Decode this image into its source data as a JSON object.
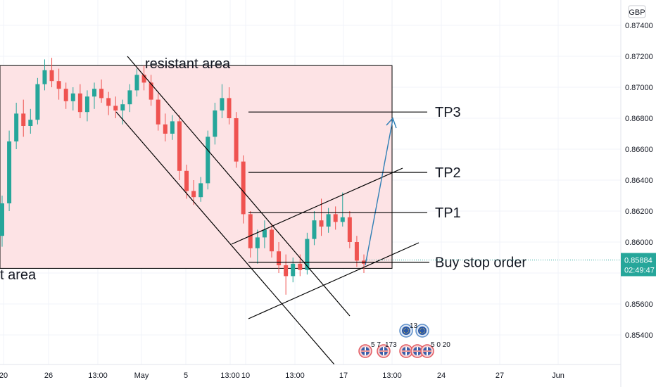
{
  "colors": {
    "up": "#26a69a",
    "down": "#ef5350",
    "zone_fill": "#fde3e5",
    "line": "#000000",
    "arrow": "#2f7fb5",
    "price_badge": "#26a69a",
    "grid": "#f0f3fa",
    "axis_text": "#131722"
  },
  "chart_data": {
    "type": "candlestick",
    "currency": "GBP",
    "ylim": [
      0.8518,
      0.8752
    ],
    "y_ticks": [
      "0.87400",
      "0.87200",
      "0.87000",
      "0.86800",
      "0.86600",
      "0.86400",
      "0.86200",
      "0.86000",
      "0.85800",
      "0.85600",
      "0.85400"
    ],
    "x_ticks": [
      "20",
      "26",
      "13:00",
      "May",
      "5",
      "13:00",
      "10",
      "13:00",
      "17",
      "13:00",
      "24",
      "27",
      "Jun"
    ],
    "current_price": "0.85884",
    "countdown": "02:49:47",
    "zones": [
      {
        "label": "resistant area",
        "top": 0.8714,
        "bottom": 0.8583
      }
    ],
    "support_label": "t area",
    "levels": [
      {
        "label": "TP3",
        "price": 0.8684
      },
      {
        "label": "TP2",
        "price": 0.8645
      },
      {
        "label": "TP1",
        "price": 0.8619
      },
      {
        "label": "Buy stop order",
        "price": 0.8587
      }
    ],
    "candles": [
      [
        0.8604,
        0.863,
        0.8597,
        0.8625
      ],
      [
        0.8625,
        0.8672,
        0.862,
        0.8665
      ],
      [
        0.8665,
        0.869,
        0.866,
        0.8683
      ],
      [
        0.8683,
        0.8692,
        0.8668,
        0.8675
      ],
      [
        0.8675,
        0.8686,
        0.867,
        0.8679
      ],
      [
        0.8679,
        0.8706,
        0.8676,
        0.8702
      ],
      [
        0.8702,
        0.8718,
        0.8698,
        0.8711
      ],
      [
        0.8711,
        0.8719,
        0.87,
        0.8704
      ],
      [
        0.8704,
        0.8712,
        0.8692,
        0.8699
      ],
      [
        0.8699,
        0.8703,
        0.8686,
        0.8691
      ],
      [
        0.8691,
        0.87,
        0.8685,
        0.8696
      ],
      [
        0.8696,
        0.8702,
        0.868,
        0.8684
      ],
      [
        0.8684,
        0.8698,
        0.8678,
        0.8694
      ],
      [
        0.8694,
        0.8703,
        0.8686,
        0.8699
      ],
      [
        0.8699,
        0.8705,
        0.869,
        0.8693
      ],
      [
        0.8693,
        0.8697,
        0.8682,
        0.8688
      ],
      [
        0.8688,
        0.8694,
        0.868,
        0.8685
      ],
      [
        0.8685,
        0.8692,
        0.8676,
        0.8689
      ],
      [
        0.8689,
        0.8702,
        0.8684,
        0.8698
      ],
      [
        0.8698,
        0.8712,
        0.8694,
        0.8708
      ],
      [
        0.8708,
        0.8714,
        0.8698,
        0.8703
      ],
      [
        0.8703,
        0.8708,
        0.8688,
        0.8692
      ],
      [
        0.8692,
        0.8696,
        0.8672,
        0.8676
      ],
      [
        0.8676,
        0.8683,
        0.8665,
        0.867
      ],
      [
        0.867,
        0.8682,
        0.8666,
        0.8678
      ],
      [
        0.8678,
        0.8682,
        0.864,
        0.8646
      ],
      [
        0.8646,
        0.865,
        0.8628,
        0.8633
      ],
      [
        0.8633,
        0.864,
        0.8624,
        0.8629
      ],
      [
        0.8629,
        0.8642,
        0.8626,
        0.8638
      ],
      [
        0.8638,
        0.8672,
        0.8634,
        0.8668
      ],
      [
        0.8668,
        0.869,
        0.8663,
        0.8685
      ],
      [
        0.8685,
        0.8702,
        0.868,
        0.8693
      ],
      [
        0.8693,
        0.87,
        0.8676,
        0.868
      ],
      [
        0.868,
        0.8684,
        0.8648,
        0.8652
      ],
      [
        0.8652,
        0.8656,
        0.8612,
        0.8618
      ],
      [
        0.8618,
        0.862,
        0.859,
        0.8596
      ],
      [
        0.8596,
        0.8608,
        0.8586,
        0.8603
      ],
      [
        0.8603,
        0.8614,
        0.8596,
        0.8608
      ],
      [
        0.8608,
        0.8612,
        0.859,
        0.8594
      ],
      [
        0.8594,
        0.86,
        0.858,
        0.8585
      ],
      [
        0.8585,
        0.8592,
        0.8566,
        0.8578
      ],
      [
        0.8578,
        0.859,
        0.8574,
        0.8586
      ],
      [
        0.8586,
        0.8592,
        0.8578,
        0.8582
      ],
      [
        0.8582,
        0.8606,
        0.8579,
        0.8602
      ],
      [
        0.8602,
        0.862,
        0.8598,
        0.8614
      ],
      [
        0.8614,
        0.8628,
        0.8604,
        0.861
      ],
      [
        0.861,
        0.8622,
        0.8606,
        0.8618
      ],
      [
        0.8618,
        0.8623,
        0.8608,
        0.8613
      ],
      [
        0.8613,
        0.8632,
        0.861,
        0.8616
      ],
      [
        0.8616,
        0.862,
        0.8596,
        0.86
      ],
      [
        0.86,
        0.8604,
        0.8584,
        0.8588
      ],
      [
        0.8588,
        0.8592,
        0.858,
        0.8586
      ]
    ],
    "events": [
      {
        "label": "5 7"
      },
      {
        "label": "173"
      },
      {
        "label": "13"
      },
      {
        "label": "5 0 20"
      }
    ]
  }
}
